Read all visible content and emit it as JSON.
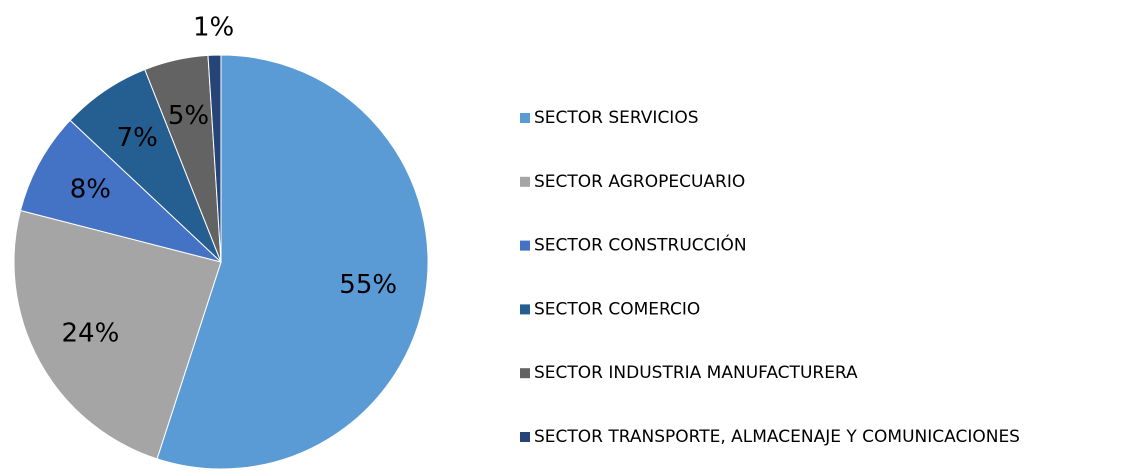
{
  "chart_data": {
    "type": "pie",
    "categories": [
      "SECTOR SERVICIOS",
      "SECTOR AGROPECUARIO",
      "SECTOR CONSTRUCCIÓN",
      "SECTOR COMERCIO",
      "SECTOR INDUSTRIA MANUFACTURERA",
      "SECTOR TRANSPORTE, ALMACENAJE Y COMUNICACIONES"
    ],
    "values": [
      55,
      24,
      8,
      7,
      5,
      1
    ],
    "value_labels": [
      "55%",
      "24%",
      "8%",
      "7%",
      "5%",
      "1%"
    ],
    "colors": [
      "#5b9bd5",
      "#a5a5a5",
      "#4472c4",
      "#255e91",
      "#636363",
      "#264478"
    ],
    "legend": "right"
  }
}
